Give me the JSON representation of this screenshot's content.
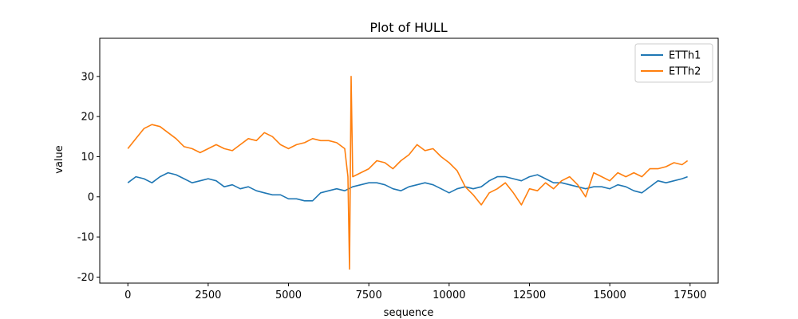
{
  "chart_data": {
    "type": "line",
    "title": "Plot of HULL",
    "xlabel": "sequence",
    "ylabel": "value",
    "xlim": [
      -875,
      18375
    ],
    "ylim": [
      -21.5,
      39.5
    ],
    "xticks": [
      0,
      2500,
      5000,
      7500,
      10000,
      12500,
      15000,
      17500
    ],
    "yticks": [
      -20,
      -10,
      0,
      10,
      20,
      30
    ],
    "grid": false,
    "legend_position": "top-right",
    "series": [
      {
        "name": "ETTh1",
        "color": "#1f77b4",
        "x": [
          0,
          250,
          500,
          750,
          1000,
          1250,
          1500,
          1750,
          2000,
          2250,
          2500,
          2750,
          3000,
          3250,
          3500,
          3750,
          4000,
          4250,
          4500,
          4750,
          5000,
          5250,
          5500,
          5750,
          6000,
          6250,
          6500,
          6750,
          7000,
          7250,
          7500,
          7750,
          8000,
          8250,
          8500,
          8750,
          9000,
          9250,
          9500,
          9750,
          10000,
          10250,
          10500,
          10750,
          11000,
          11250,
          11500,
          11750,
          12000,
          12250,
          12500,
          12750,
          13000,
          13250,
          13500,
          13750,
          14000,
          14250,
          14500,
          14750,
          15000,
          15250,
          15500,
          15750,
          16000,
          16250,
          16500,
          16750,
          17000,
          17250,
          17420
        ],
        "y": [
          3.5,
          5.0,
          4.5,
          3.5,
          5.0,
          6.0,
          5.5,
          4.5,
          3.5,
          4.0,
          4.5,
          4.0,
          2.5,
          3.0,
          2.0,
          2.5,
          1.5,
          1.0,
          0.5,
          0.5,
          -0.5,
          -0.5,
          -1.0,
          -1.0,
          1.0,
          1.5,
          2.0,
          1.5,
          2.5,
          3.0,
          3.5,
          3.5,
          3.0,
          2.0,
          1.5,
          2.5,
          3.0,
          3.5,
          3.0,
          2.0,
          1.0,
          2.0,
          2.5,
          2.0,
          2.5,
          4.0,
          5.0,
          5.0,
          4.5,
          4.0,
          5.0,
          5.5,
          4.5,
          3.5,
          3.5,
          3.0,
          2.5,
          2.0,
          2.5,
          2.5,
          2.0,
          3.0,
          2.5,
          1.5,
          1.0,
          2.5,
          4.0,
          3.5,
          4.0,
          4.5,
          5.0
        ]
      },
      {
        "name": "ETTh2",
        "color": "#ff7f0e",
        "x": [
          0,
          250,
          500,
          750,
          1000,
          1250,
          1500,
          1750,
          2000,
          2250,
          2500,
          2750,
          3000,
          3250,
          3500,
          3750,
          4000,
          4250,
          4500,
          4750,
          5000,
          5250,
          5500,
          5750,
          6000,
          6250,
          6500,
          6750,
          6850,
          6900,
          6950,
          7000,
          7250,
          7500,
          7750,
          8000,
          8250,
          8500,
          8750,
          9000,
          9250,
          9500,
          9750,
          10000,
          10250,
          10500,
          10750,
          11000,
          11250,
          11500,
          11750,
          12000,
          12250,
          12500,
          12750,
          13000,
          13250,
          13500,
          13750,
          14000,
          14250,
          14500,
          14750,
          15000,
          15250,
          15500,
          15750,
          16000,
          16250,
          16500,
          16750,
          17000,
          17250,
          17420
        ],
        "y": [
          12.0,
          14.5,
          17.0,
          18.0,
          17.5,
          16.0,
          14.5,
          12.5,
          12.0,
          11.0,
          12.0,
          13.0,
          12.0,
          11.5,
          13.0,
          14.5,
          14.0,
          16.0,
          15.0,
          13.0,
          12.0,
          13.0,
          13.5,
          14.5,
          14.0,
          14.0,
          13.5,
          12.0,
          5.0,
          -18.0,
          30.0,
          5.0,
          6.0,
          7.0,
          9.0,
          8.5,
          7.0,
          9.0,
          10.5,
          13.0,
          11.5,
          12.0,
          10.0,
          8.5,
          6.5,
          2.5,
          0.5,
          -2.0,
          1.0,
          2.0,
          3.5,
          1.0,
          -2.0,
          2.0,
          1.5,
          3.5,
          2.0,
          4.0,
          5.0,
          3.0,
          0.0,
          6.0,
          5.0,
          4.0,
          6.0,
          5.0,
          6.0,
          5.0,
          7.0,
          7.0,
          7.5,
          8.5,
          8.0,
          9.0
        ]
      }
    ]
  }
}
